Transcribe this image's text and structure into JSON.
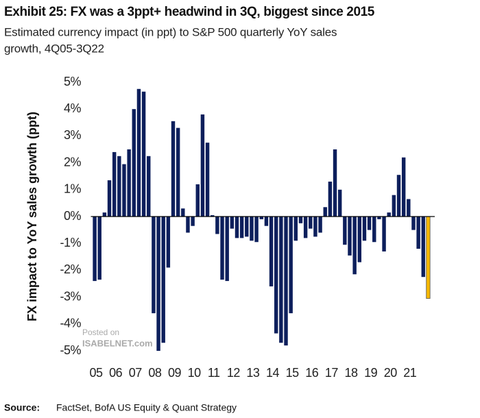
{
  "chart_data": {
    "type": "bar",
    "title": "Exhibit 25: FX was a 3ppt+ headwind in 3Q, biggest since 2015",
    "subtitle_lines": [
      "Estimated currency impact (in ppt) to S&P 500 quarterly YoY sales",
      "growth, 4Q05-3Q22"
    ],
    "y_label": "FX impact to YoY sales growth (ppt)",
    "source_label": "Source:",
    "source": "FactSet, BofA US Equity & Quant Strategy",
    "watermark": [
      "Posted on",
      "ISABELNET.com"
    ],
    "categories": [
      "05",
      null,
      null,
      null,
      "06",
      null,
      null,
      null,
      "07",
      null,
      null,
      null,
      "08",
      null,
      null,
      null,
      "09",
      null,
      null,
      null,
      "10",
      null,
      null,
      null,
      "11",
      null,
      null,
      null,
      "12",
      null,
      null,
      null,
      "13",
      null,
      null,
      null,
      "14",
      null,
      null,
      null,
      "15",
      null,
      null,
      null,
      "16",
      null,
      null,
      null,
      "17",
      null,
      null,
      null,
      "18",
      null,
      null,
      null,
      "19",
      null,
      null,
      null,
      "20",
      null,
      null,
      null,
      "21",
      null,
      null,
      null,
      null
    ],
    "values": [
      -2.4,
      -2.35,
      0.15,
      1.35,
      2.4,
      2.25,
      1.95,
      2.5,
      4.0,
      4.75,
      4.65,
      2.25,
      -3.6,
      -5.0,
      -4.7,
      -1.9,
      3.55,
      3.3,
      0.3,
      -0.6,
      -0.35,
      1.2,
      3.8,
      2.75,
      0.05,
      -0.65,
      -2.35,
      -2.4,
      -0.45,
      -0.8,
      -0.8,
      -0.75,
      -0.9,
      -0.95,
      -0.1,
      -0.35,
      -2.6,
      -4.35,
      -4.7,
      -4.8,
      -3.6,
      -0.9,
      -0.25,
      -0.8,
      -0.45,
      -0.75,
      -0.6,
      0.35,
      1.3,
      2.5,
      1.0,
      -1.05,
      -1.45,
      -2.15,
      -1.7,
      -0.9,
      -0.5,
      -0.95,
      -0.1,
      -1.3,
      0.15,
      0.8,
      1.55,
      2.2,
      0.65,
      -0.5,
      -1.2,
      -2.25,
      -3.05
    ],
    "color": "#0d1f5c",
    "highlight": {
      "index": 68,
      "color": "#f5b700"
    },
    "ylim": [
      -5,
      5
    ],
    "yticks": [
      {
        "value": 5,
        "label": "5%"
      },
      {
        "value": 4,
        "label": "4%"
      },
      {
        "value": 3,
        "label": "3%"
      },
      {
        "value": 2,
        "label": "2%"
      },
      {
        "value": 1,
        "label": "1%"
      },
      {
        "value": 0,
        "label": "0%"
      },
      {
        "value": -1,
        "label": "-1%"
      },
      {
        "value": -2,
        "label": "-2%"
      },
      {
        "value": -3,
        "label": "-3%"
      },
      {
        "value": -4,
        "label": "-4%"
      },
      {
        "value": -5,
        "label": "-5%"
      }
    ],
    "grid": false
  }
}
